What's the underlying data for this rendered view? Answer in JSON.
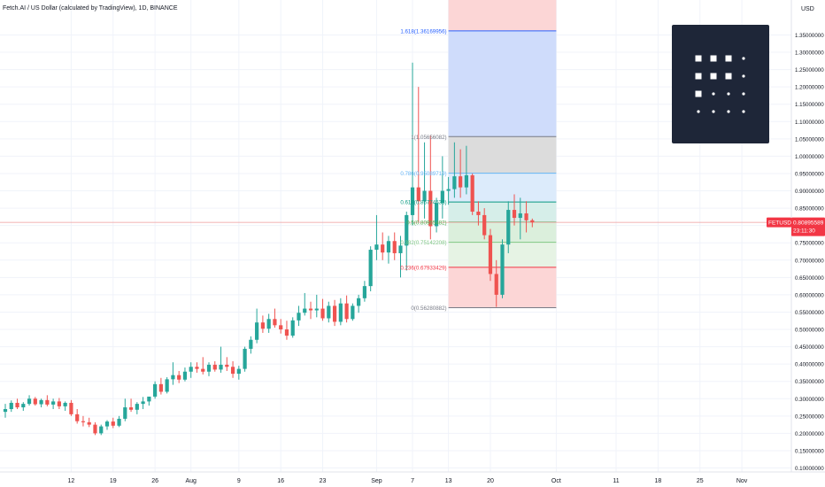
{
  "header": {
    "title": "Fetch.AI / US Dollar (calculated by TradingView), 1D, BINANCE"
  },
  "price_axis": {
    "currency": "USD",
    "ticks": [
      {
        "label": "1.35000000",
        "value": 1.35
      },
      {
        "label": "1.30000000",
        "value": 1.3
      },
      {
        "label": "1.25000000",
        "value": 1.25
      },
      {
        "label": "1.20000000",
        "value": 1.2
      },
      {
        "label": "1.15000000",
        "value": 1.15
      },
      {
        "label": "1.10000000",
        "value": 1.1
      },
      {
        "label": "1.05000000",
        "value": 1.05
      },
      {
        "label": "1.00000000",
        "value": 1.0
      },
      {
        "label": "0.95000000",
        "value": 0.95
      },
      {
        "label": "0.90000000",
        "value": 0.9
      },
      {
        "label": "0.85000000",
        "value": 0.85
      },
      {
        "label": "0.80000000",
        "value": 0.8
      },
      {
        "label": "0.75000000",
        "value": 0.75
      },
      {
        "label": "0.70000000",
        "value": 0.7
      },
      {
        "label": "0.65000000",
        "value": 0.65
      },
      {
        "label": "0.60000000",
        "value": 0.6
      },
      {
        "label": "0.55000000",
        "value": 0.55
      },
      {
        "label": "0.50000000",
        "value": 0.5
      },
      {
        "label": "0.45000000",
        "value": 0.45
      },
      {
        "label": "0.40000000",
        "value": 0.4
      },
      {
        "label": "0.35000000",
        "value": 0.35
      },
      {
        "label": "0.30000000",
        "value": 0.3
      },
      {
        "label": "0.25000000",
        "value": 0.25
      },
      {
        "label": "0.20000000",
        "value": 0.2
      },
      {
        "label": "0.15000000",
        "value": 0.15
      },
      {
        "label": "0.10000000",
        "value": 0.1
      }
    ],
    "current_price_label": {
      "symbol": "FETUSD",
      "price": "0.80895589",
      "countdown": "23:11:30",
      "value": 0.80895589
    }
  },
  "time_axis": {
    "ticks": [
      {
        "label": "12",
        "day": 11
      },
      {
        "label": "19",
        "day": 18
      },
      {
        "label": "26",
        "day": 25
      },
      {
        "label": "Aug",
        "day": 31
      },
      {
        "label": "9",
        "day": 39
      },
      {
        "label": "16",
        "day": 46
      },
      {
        "label": "23",
        "day": 53
      },
      {
        "label": "Sep",
        "day": 62
      },
      {
        "label": "7",
        "day": 68
      },
      {
        "label": "13",
        "day": 74
      },
      {
        "label": "20",
        "day": 81
      },
      {
        "label": "Oct",
        "day": 92
      },
      {
        "label": "11",
        "day": 102
      },
      {
        "label": "18",
        "day": 109
      },
      {
        "label": "25",
        "day": 116
      },
      {
        "label": "Nov",
        "day": 123
      }
    ]
  },
  "fib_levels": [
    {
      "label": "1.618(1.36169956)",
      "ratio": 1.618,
      "price": 1.36169956,
      "color": "#2962ff",
      "fill": "#cfdcfb"
    },
    {
      "label": "1(1.05656082)",
      "ratio": 1,
      "price": 1.05656082,
      "color": "#787b86",
      "fill": "#dcdcdc"
    },
    {
      "label": "0.786(0.95089719)",
      "ratio": 0.786,
      "price": 0.95089719,
      "color": "#64b5f6",
      "fill": "#dcebfb"
    },
    {
      "label": "0.618(0.86774538)",
      "ratio": 0.618,
      "price": 0.86774538,
      "color": "#089981",
      "fill": "#d6eee9"
    },
    {
      "label": "0.5(0.80965482)",
      "ratio": 0.5,
      "price": 0.80965482,
      "color": "#4caf50",
      "fill": "#dbefdc"
    },
    {
      "label": "0.382(0.75142208)",
      "ratio": 0.382,
      "price": 0.75142208,
      "color": "#81c784",
      "fill": "#e6f3e4"
    },
    {
      "label": "0.236(0.67933429)",
      "ratio": 0.236,
      "price": 0.67933429,
      "color": "#f23645",
      "fill": "#fcd6d6"
    },
    {
      "label": "0(0.56280882)",
      "ratio": 0,
      "price": 0.56280882,
      "color": "#787b86",
      "fill": ""
    }
  ],
  "fib_extra": {
    "above_fill": "#fcd6d6",
    "start_day": 74,
    "end_day": 92
  },
  "colors": {
    "up": "#26a69a",
    "down": "#ef5350",
    "grid": "#f0f3fa",
    "axis_text": "#131722",
    "price_line": "#ef9a9a",
    "tag_bg": "#f23645"
  },
  "chart_data": {
    "type": "candlestick",
    "title": "Fetch.AI / US Dollar (calculated by TradingView), 1D, BINANCE",
    "ylabel": "USD",
    "ylim": [
      0.09,
      1.37
    ],
    "x_unit": "days from the first visible candle (about 1 Jul)",
    "candles": [
      {
        "d": 0,
        "o": 0.262,
        "h": 0.285,
        "l": 0.245,
        "c": 0.27
      },
      {
        "d": 1,
        "o": 0.27,
        "h": 0.295,
        "l": 0.262,
        "c": 0.288
      },
      {
        "d": 2,
        "o": 0.288,
        "h": 0.3,
        "l": 0.27,
        "c": 0.275
      },
      {
        "d": 3,
        "o": 0.275,
        "h": 0.29,
        "l": 0.265,
        "c": 0.285
      },
      {
        "d": 4,
        "o": 0.285,
        "h": 0.31,
        "l": 0.28,
        "c": 0.3
      },
      {
        "d": 5,
        "o": 0.3,
        "h": 0.305,
        "l": 0.28,
        "c": 0.284
      },
      {
        "d": 6,
        "o": 0.284,
        "h": 0.3,
        "l": 0.275,
        "c": 0.296
      },
      {
        "d": 7,
        "o": 0.296,
        "h": 0.31,
        "l": 0.278,
        "c": 0.283
      },
      {
        "d": 8,
        "o": 0.283,
        "h": 0.3,
        "l": 0.27,
        "c": 0.292
      },
      {
        "d": 9,
        "o": 0.292,
        "h": 0.302,
        "l": 0.27,
        "c": 0.278
      },
      {
        "d": 10,
        "o": 0.278,
        "h": 0.292,
        "l": 0.265,
        "c": 0.288
      },
      {
        "d": 11,
        "o": 0.288,
        "h": 0.296,
        "l": 0.25,
        "c": 0.255
      },
      {
        "d": 12,
        "o": 0.255,
        "h": 0.27,
        "l": 0.228,
        "c": 0.235
      },
      {
        "d": 13,
        "o": 0.235,
        "h": 0.25,
        "l": 0.22,
        "c": 0.232
      },
      {
        "d": 14,
        "o": 0.232,
        "h": 0.245,
        "l": 0.218,
        "c": 0.225
      },
      {
        "d": 15,
        "o": 0.225,
        "h": 0.232,
        "l": 0.195,
        "c": 0.2
      },
      {
        "d": 16,
        "o": 0.2,
        "h": 0.225,
        "l": 0.195,
        "c": 0.22
      },
      {
        "d": 17,
        "o": 0.22,
        "h": 0.238,
        "l": 0.21,
        "c": 0.234
      },
      {
        "d": 18,
        "o": 0.234,
        "h": 0.245,
        "l": 0.215,
        "c": 0.222
      },
      {
        "d": 19,
        "o": 0.222,
        "h": 0.25,
        "l": 0.218,
        "c": 0.242
      },
      {
        "d": 20,
        "o": 0.242,
        "h": 0.3,
        "l": 0.235,
        "c": 0.275
      },
      {
        "d": 21,
        "o": 0.275,
        "h": 0.3,
        "l": 0.262,
        "c": 0.268
      },
      {
        "d": 22,
        "o": 0.268,
        "h": 0.29,
        "l": 0.255,
        "c": 0.285
      },
      {
        "d": 23,
        "o": 0.285,
        "h": 0.305,
        "l": 0.27,
        "c": 0.292
      },
      {
        "d": 24,
        "o": 0.292,
        "h": 0.3,
        "l": 0.28,
        "c": 0.306
      },
      {
        "d": 25,
        "o": 0.306,
        "h": 0.35,
        "l": 0.3,
        "c": 0.342
      },
      {
        "d": 26,
        "o": 0.342,
        "h": 0.36,
        "l": 0.312,
        "c": 0.32
      },
      {
        "d": 27,
        "o": 0.32,
        "h": 0.362,
        "l": 0.315,
        "c": 0.356
      },
      {
        "d": 28,
        "o": 0.356,
        "h": 0.405,
        "l": 0.34,
        "c": 0.368
      },
      {
        "d": 29,
        "o": 0.368,
        "h": 0.38,
        "l": 0.345,
        "c": 0.355
      },
      {
        "d": 30,
        "o": 0.355,
        "h": 0.39,
        "l": 0.35,
        "c": 0.378
      },
      {
        "d": 31,
        "o": 0.378,
        "h": 0.405,
        "l": 0.36,
        "c": 0.392
      },
      {
        "d": 32,
        "o": 0.392,
        "h": 0.405,
        "l": 0.375,
        "c": 0.386
      },
      {
        "d": 33,
        "o": 0.386,
        "h": 0.42,
        "l": 0.37,
        "c": 0.378
      },
      {
        "d": 34,
        "o": 0.378,
        "h": 0.405,
        "l": 0.365,
        "c": 0.398
      },
      {
        "d": 35,
        "o": 0.398,
        "h": 0.408,
        "l": 0.378,
        "c": 0.384
      },
      {
        "d": 36,
        "o": 0.384,
        "h": 0.45,
        "l": 0.375,
        "c": 0.398
      },
      {
        "d": 37,
        "o": 0.398,
        "h": 0.42,
        "l": 0.38,
        "c": 0.392
      },
      {
        "d": 38,
        "o": 0.392,
        "h": 0.408,
        "l": 0.36,
        "c": 0.372
      },
      {
        "d": 39,
        "o": 0.372,
        "h": 0.395,
        "l": 0.355,
        "c": 0.386
      },
      {
        "d": 40,
        "o": 0.386,
        "h": 0.45,
        "l": 0.378,
        "c": 0.444
      },
      {
        "d": 41,
        "o": 0.444,
        "h": 0.48,
        "l": 0.43,
        "c": 0.47
      },
      {
        "d": 42,
        "o": 0.47,
        "h": 0.56,
        "l": 0.46,
        "c": 0.52
      },
      {
        "d": 43,
        "o": 0.52,
        "h": 0.54,
        "l": 0.49,
        "c": 0.502
      },
      {
        "d": 44,
        "o": 0.502,
        "h": 0.545,
        "l": 0.49,
        "c": 0.53
      },
      {
        "d": 45,
        "o": 0.53,
        "h": 0.56,
        "l": 0.505,
        "c": 0.512
      },
      {
        "d": 46,
        "o": 0.512,
        "h": 0.53,
        "l": 0.488,
        "c": 0.5
      },
      {
        "d": 47,
        "o": 0.5,
        "h": 0.525,
        "l": 0.47,
        "c": 0.482
      },
      {
        "d": 48,
        "o": 0.482,
        "h": 0.535,
        "l": 0.476,
        "c": 0.526
      },
      {
        "d": 49,
        "o": 0.526,
        "h": 0.568,
        "l": 0.51,
        "c": 0.548
      },
      {
        "d": 50,
        "o": 0.548,
        "h": 0.605,
        "l": 0.54,
        "c": 0.56
      },
      {
        "d": 51,
        "o": 0.56,
        "h": 0.58,
        "l": 0.53,
        "c": 0.555
      },
      {
        "d": 52,
        "o": 0.555,
        "h": 0.6,
        "l": 0.535,
        "c": 0.56
      },
      {
        "d": 53,
        "o": 0.56,
        "h": 0.588,
        "l": 0.525,
        "c": 0.532
      },
      {
        "d": 54,
        "o": 0.532,
        "h": 0.58,
        "l": 0.52,
        "c": 0.568
      },
      {
        "d": 55,
        "o": 0.568,
        "h": 0.585,
        "l": 0.51,
        "c": 0.522
      },
      {
        "d": 56,
        "o": 0.522,
        "h": 0.59,
        "l": 0.512,
        "c": 0.575
      },
      {
        "d": 57,
        "o": 0.575,
        "h": 0.598,
        "l": 0.52,
        "c": 0.53
      },
      {
        "d": 58,
        "o": 0.53,
        "h": 0.575,
        "l": 0.525,
        "c": 0.568
      },
      {
        "d": 59,
        "o": 0.568,
        "h": 0.6,
        "l": 0.548,
        "c": 0.59
      },
      {
        "d": 60,
        "o": 0.59,
        "h": 0.64,
        "l": 0.58,
        "c": 0.625
      },
      {
        "d": 61,
        "o": 0.625,
        "h": 0.74,
        "l": 0.61,
        "c": 0.73
      },
      {
        "d": 62,
        "o": 0.73,
        "h": 0.83,
        "l": 0.7,
        "c": 0.745
      },
      {
        "d": 63,
        "o": 0.745,
        "h": 0.78,
        "l": 0.7,
        "c": 0.722
      },
      {
        "d": 64,
        "o": 0.722,
        "h": 0.77,
        "l": 0.69,
        "c": 0.755
      },
      {
        "d": 65,
        "o": 0.755,
        "h": 0.78,
        "l": 0.7,
        "c": 0.72
      },
      {
        "d": 66,
        "o": 0.72,
        "h": 0.77,
        "l": 0.65,
        "c": 0.742
      },
      {
        "d": 67,
        "o": 0.742,
        "h": 0.84,
        "l": 0.67,
        "c": 0.83
      },
      {
        "d": 68,
        "o": 0.83,
        "h": 1.27,
        "l": 0.8,
        "c": 0.91
      },
      {
        "d": 69,
        "o": 0.91,
        "h": 1.2,
        "l": 0.81,
        "c": 0.87
      },
      {
        "d": 70,
        "o": 0.87,
        "h": 1.04,
        "l": 0.82,
        "c": 0.9
      },
      {
        "d": 71,
        "o": 0.9,
        "h": 1.06,
        "l": 0.76,
        "c": 0.798
      },
      {
        "d": 72,
        "o": 0.798,
        "h": 0.88,
        "l": 0.78,
        "c": 0.865
      },
      {
        "d": 73,
        "o": 0.865,
        "h": 1.0,
        "l": 0.82,
        "c": 0.9
      },
      {
        "d": 74,
        "o": 0.9,
        "h": 0.94,
        "l": 0.86,
        "c": 0.905
      },
      {
        "d": 75,
        "o": 0.905,
        "h": 1.04,
        "l": 0.88,
        "c": 0.942
      },
      {
        "d": 76,
        "o": 0.942,
        "h": 1.02,
        "l": 0.88,
        "c": 0.91
      },
      {
        "d": 77,
        "o": 0.91,
        "h": 1.03,
        "l": 0.89,
        "c": 0.945
      },
      {
        "d": 78,
        "o": 0.945,
        "h": 0.95,
        "l": 0.83,
        "c": 0.84
      },
      {
        "d": 79,
        "o": 0.84,
        "h": 0.87,
        "l": 0.8,
        "c": 0.83
      },
      {
        "d": 80,
        "o": 0.83,
        "h": 0.85,
        "l": 0.76,
        "c": 0.772
      },
      {
        "d": 81,
        "o": 0.772,
        "h": 0.79,
        "l": 0.64,
        "c": 0.66
      },
      {
        "d": 82,
        "o": 0.66,
        "h": 0.7,
        "l": 0.565,
        "c": 0.6
      },
      {
        "d": 83,
        "o": 0.6,
        "h": 0.76,
        "l": 0.59,
        "c": 0.745
      },
      {
        "d": 84,
        "o": 0.745,
        "h": 0.87,
        "l": 0.72,
        "c": 0.845
      },
      {
        "d": 85,
        "o": 0.845,
        "h": 0.89,
        "l": 0.8,
        "c": 0.822
      },
      {
        "d": 86,
        "o": 0.822,
        "h": 0.88,
        "l": 0.76,
        "c": 0.835
      },
      {
        "d": 87,
        "o": 0.835,
        "h": 0.87,
        "l": 0.78,
        "c": 0.815
      },
      {
        "d": 88,
        "o": 0.815,
        "h": 0.82,
        "l": 0.795,
        "c": 0.809
      }
    ]
  }
}
